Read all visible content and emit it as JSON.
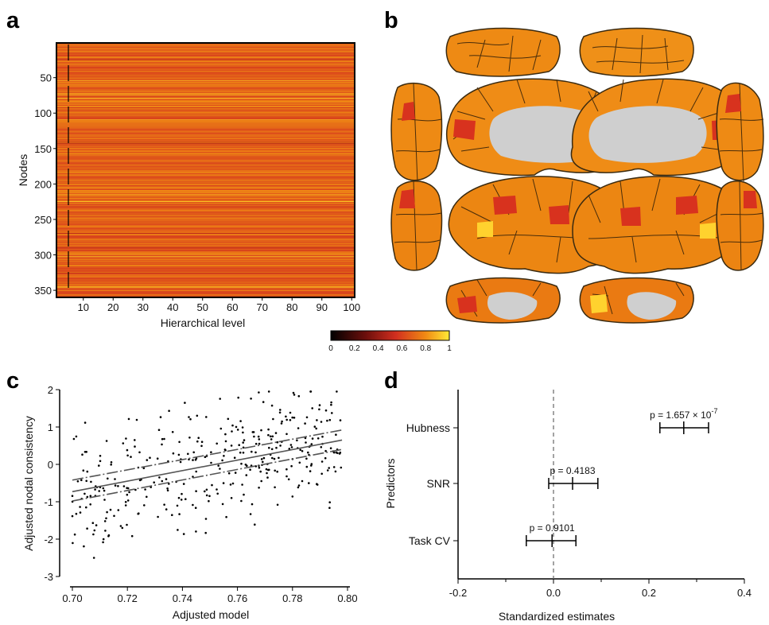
{
  "panel_labels": {
    "a": "a",
    "b": "b",
    "c": "c",
    "d": "d"
  },
  "colors": {
    "low": "#000000",
    "mid": "#c8281e",
    "high": "#ffe632",
    "orange": "#ee8a14",
    "brain_gray": "#cfcfcf"
  },
  "chart_data": [
    {
      "id": "a",
      "type": "heatmap",
      "ylabel": "Nodes",
      "xlabel": "Hierarchical level",
      "x_ticks": [
        10,
        20,
        30,
        40,
        50,
        60,
        70,
        80,
        90,
        100
      ],
      "y_ticks": [
        50,
        100,
        150,
        200,
        250,
        300,
        350
      ],
      "xlim": [
        1,
        101
      ],
      "ylim": [
        1,
        360
      ],
      "n_rows": 360,
      "dashed_marker_level": 5,
      "value_range": [
        0,
        1
      ],
      "typical_value": 0.7
    },
    {
      "id": "b",
      "type": "brain-surface-maps",
      "views": [
        "dorsal-left",
        "dorsal-right",
        "anterior-left",
        "medial-left",
        "medial-right",
        "anterior-right",
        "posterior-left",
        "lateral-left",
        "lateral-right",
        "posterior-right",
        "ventral-left",
        "ventral-right"
      ]
    },
    {
      "id": "colorbar",
      "type": "colorbar",
      "ticks": [
        "0",
        "0.2",
        "0.4",
        "0.6",
        "0.8",
        "1"
      ],
      "range": [
        0,
        1
      ]
    },
    {
      "id": "c",
      "type": "scatter",
      "xlabel": "Adjusted model",
      "ylabel": "Adjusted nodal consistency",
      "xlim": [
        0.695,
        0.8
      ],
      "ylim": [
        -3,
        2
      ],
      "x_ticks": [
        "0.70",
        "0.72",
        "0.74",
        "0.76",
        "0.78",
        "0.80"
      ],
      "y_ticks": [
        "2",
        "1",
        "0",
        "-1",
        "-2",
        "-3"
      ],
      "n_points": 360,
      "fit_line": {
        "x": [
          0.7,
          0.798
        ],
        "y": [
          -0.73,
          0.65
        ]
      },
      "ci_upper": {
        "x": [
          0.7,
          0.798
        ],
        "y": [
          -0.42,
          0.92
        ]
      },
      "ci_lower": {
        "x": [
          0.7,
          0.798
        ],
        "y": [
          -0.98,
          0.4
        ]
      }
    },
    {
      "id": "d",
      "type": "forest",
      "xlabel": "Standardized estimates",
      "ylabel": "Predictors",
      "xlim": [
        -0.2,
        0.4
      ],
      "x_ticks": [
        "-0.2",
        "0.0",
        "0.2",
        "0.4"
      ],
      "reference_line": 0,
      "predictors": [
        {
          "name": "Hubness",
          "estimate": 0.273,
          "lo": 0.223,
          "hi": 0.325,
          "p_prefix": "p = 1.657 × 10",
          "p_exp": "-7"
        },
        {
          "name": "SNR",
          "estimate": 0.04,
          "lo": -0.01,
          "hi": 0.093,
          "p_prefix": "p = 0.4183",
          "p_exp": ""
        },
        {
          "name": "Task CV",
          "estimate": -0.003,
          "lo": -0.057,
          "hi": 0.047,
          "p_prefix": "p = 0.9101",
          "p_exp": ""
        }
      ]
    }
  ]
}
